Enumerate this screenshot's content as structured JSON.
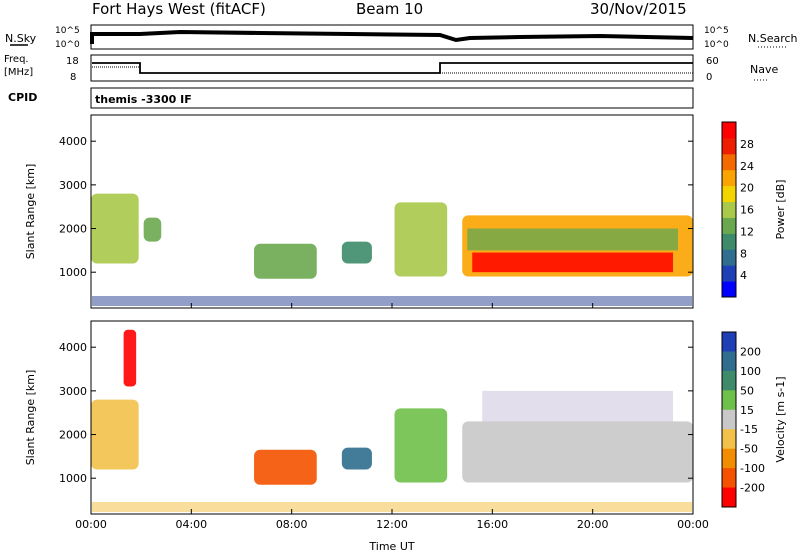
{
  "header": {
    "radar": "Fort Hays West (fitACF)",
    "beam": "Beam 10",
    "date": "30/Nov/2015"
  },
  "side_labels": {
    "nsky": "N.Sky",
    "freq": "Freq.",
    "mhz": "[MHz]",
    "cpid": "CPID",
    "nsearch": "N.Search",
    "nave": "Nave"
  },
  "cpid_text": "themis -3300 IF",
  "noise_axis": {
    "left_top": "10^5",
    "left_bottom": "10^0",
    "right_top": "10^5",
    "right_bottom": "10^0"
  },
  "freq_axis": {
    "left": [
      "18",
      "8"
    ],
    "right": [
      "60",
      "0"
    ]
  },
  "chart_data": [
    {
      "type": "heatmap",
      "title": "Power",
      "ylabel": "Slant Range [km]",
      "xlabel": "Time UT",
      "x_ticks": [
        "00:00",
        "04:00",
        "08:00",
        "12:00",
        "16:00",
        "20:00",
        "00:00"
      ],
      "y_ticks": [
        "1000",
        "2000",
        "3000",
        "4000"
      ],
      "ylim": [
        180,
        4600
      ],
      "colorbar": {
        "label": "Power [dB]",
        "ticks": [
          "4",
          "8",
          "12",
          "16",
          "20",
          "24",
          "28"
        ],
        "colors": [
          "#0000ff",
          "#1f3fb7",
          "#2f6e8e",
          "#3d8b6a",
          "#6aa84f",
          "#a9c94a",
          "#f2d500",
          "#f9a400",
          "#f46a00",
          "#ee1f00",
          "#ff0000"
        ]
      },
      "regions": [
        {
          "name": "early-echo",
          "t0": 0.0,
          "t1": 1.9,
          "r0": 1200,
          "r1": 2800,
          "level": 14
        },
        {
          "name": "early-patch",
          "t0": 2.1,
          "t1": 2.8,
          "r0": 1700,
          "r1": 2250,
          "level": 12
        },
        {
          "name": "morning-arc",
          "t0": 6.5,
          "t1": 9.0,
          "r0": 850,
          "r1": 1650,
          "level": 12
        },
        {
          "name": "noon-patch",
          "t0": 10.0,
          "t1": 11.2,
          "r0": 1200,
          "r1": 1700,
          "level": 8
        },
        {
          "name": "afternoon-arc",
          "t0": 12.1,
          "t1": 14.2,
          "r0": 900,
          "r1": 2600,
          "level": 14
        },
        {
          "name": "evening-band",
          "t0": 14.8,
          "t1": 24.0,
          "r0": 900,
          "r1": 2300,
          "level": 22
        }
      ]
    },
    {
      "type": "heatmap",
      "title": "Velocity",
      "ylabel": "Slant Range [km]",
      "xlabel": "Time UT",
      "x_ticks": [
        "00:00",
        "04:00",
        "08:00",
        "12:00",
        "16:00",
        "20:00",
        "00:00"
      ],
      "y_ticks": [
        "1000",
        "2000",
        "3000",
        "4000"
      ],
      "ylim": [
        180,
        4600
      ],
      "colorbar": {
        "label": "Velocity [m s-1]",
        "ticks": [
          "200",
          "100",
          "50",
          "15",
          "-15",
          "-50",
          "-100",
          "-200"
        ],
        "colors": [
          "#1f3fb7",
          "#2f6e8e",
          "#3d8b6a",
          "#6fc04a",
          "#c8c8c8",
          "#f2c14a",
          "#f28c00",
          "#f45200",
          "#ff0000"
        ]
      },
      "regions": [
        {
          "name": "early-echo",
          "t0": 0.0,
          "t1": 1.9,
          "r0": 1200,
          "r1": 2800,
          "velocity": -15
        },
        {
          "name": "early-red",
          "t0": 1.3,
          "t1": 1.8,
          "r0": 3100,
          "r1": 4400,
          "velocity": -200
        },
        {
          "name": "morning-arc",
          "t0": 6.5,
          "t1": 9.0,
          "r0": 850,
          "r1": 1650,
          "velocity": -100
        },
        {
          "name": "noon-patch",
          "t0": 10.0,
          "t1": 11.2,
          "r0": 1200,
          "r1": 1700,
          "velocity": 100
        },
        {
          "name": "afternoon-arc",
          "t0": 12.1,
          "t1": 14.2,
          "r0": 900,
          "r1": 2600,
          "velocity": 50
        },
        {
          "name": "evening-band",
          "t0": 14.8,
          "t1": 24.0,
          "r0": 900,
          "r1": 2300,
          "velocity": 0
        }
      ]
    }
  ]
}
